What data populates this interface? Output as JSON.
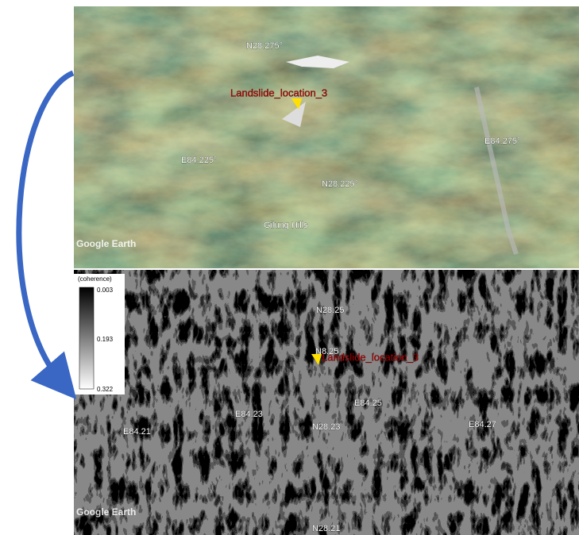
{
  "top_panel": {
    "logo": "Google Earth",
    "labels": [
      "N28.275°",
      "Landslide_location_3",
      "E84.225°",
      "N28.225°",
      "E84.275°",
      "Gilung Hills"
    ]
  },
  "bottom_panel": {
    "logo": "Google Earth",
    "labels": [
      "N28.25",
      "N8.25",
      "Landslide_location_3",
      "E84.23",
      "E84.25",
      "E84.21",
      "N28.23",
      "E84.27",
      "N28.21"
    ]
  },
  "colorbar": {
    "title": "(coherence)",
    "ticks": [
      "0.003",
      "0.193",
      "0.322"
    ]
  }
}
